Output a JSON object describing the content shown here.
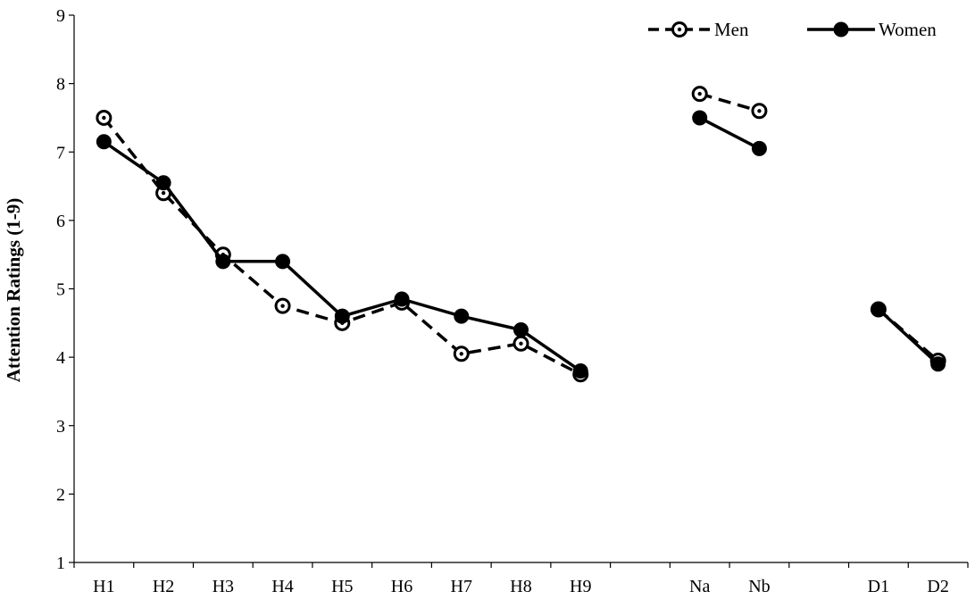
{
  "chart_data": {
    "type": "line",
    "ylabel": "Attention Ratings (1-9)",
    "xlabel": "",
    "ylim": [
      1,
      9
    ],
    "yticks": [
      1,
      2,
      3,
      4,
      5,
      6,
      7,
      8,
      9
    ],
    "categories": [
      "H1",
      "H2",
      "H3",
      "H4",
      "H5",
      "H6",
      "H7",
      "H8",
      "H9",
      "",
      "Na",
      "Nb",
      "",
      "D1",
      "D2"
    ],
    "legend_position": "top-right",
    "grid": false,
    "series": [
      {
        "name": "Men",
        "style": "dashed",
        "marker": "open-circle-with-dot",
        "color": "#000000",
        "values": [
          7.5,
          6.4,
          5.5,
          4.75,
          4.5,
          4.8,
          4.05,
          4.2,
          3.75,
          null,
          7.85,
          7.6,
          null,
          4.7,
          3.95
        ]
      },
      {
        "name": "Women",
        "style": "solid",
        "marker": "filled-circle",
        "color": "#000000",
        "values": [
          7.15,
          6.55,
          5.4,
          5.4,
          4.6,
          4.85,
          4.6,
          4.4,
          3.8,
          null,
          7.5,
          7.05,
          null,
          4.7,
          3.9
        ]
      }
    ]
  }
}
